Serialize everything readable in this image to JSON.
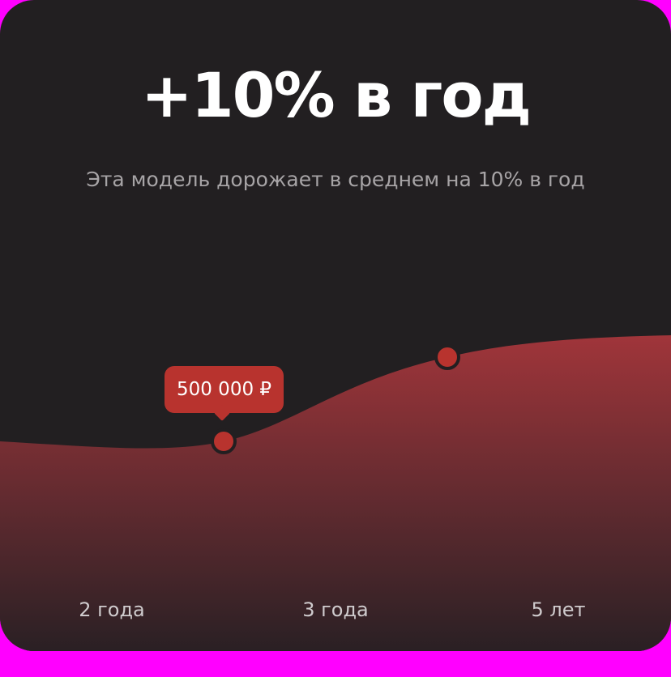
{
  "header": {
    "title": "+10% в год",
    "subtitle": "Эта модель дорожает в среднем на 10% в год"
  },
  "tooltip": {
    "price": "500 000 ₽"
  },
  "colors": {
    "background": "#221f21",
    "accent": "#b8332e",
    "area_top": "#9c3338",
    "area_bottom": "#2a2024"
  },
  "chart_data": {
    "type": "area",
    "x": [
      "2 года",
      "3 года",
      "5 лет"
    ],
    "markers": [
      {
        "x": "2 года",
        "label": "500 000 ₽"
      },
      {
        "x": "3 года"
      }
    ],
    "grid": false
  }
}
